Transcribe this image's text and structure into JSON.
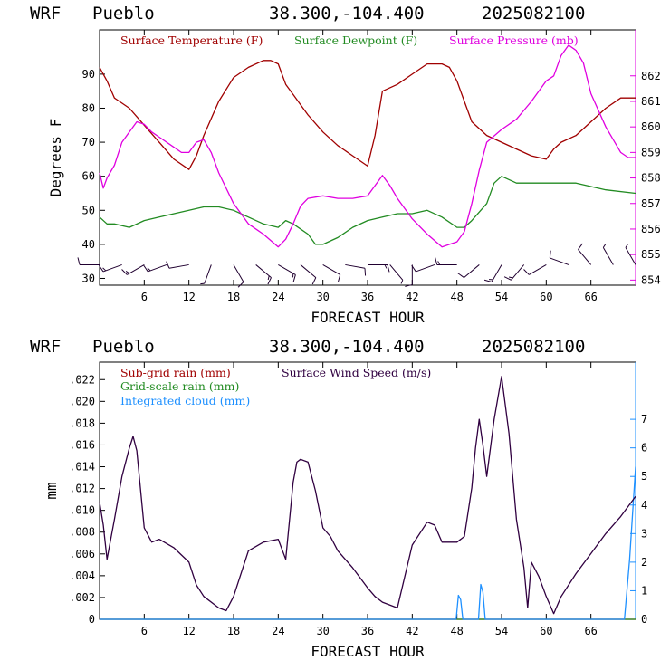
{
  "header": {
    "model": "WRF",
    "station": "Pueblo",
    "coords": "38.300,-104.400",
    "run": "2025082100"
  },
  "colors": {
    "temperature": "#a00000",
    "dewpoint": "#228b22",
    "pressure": "#e000e0",
    "subgrid_rain": "#a00000",
    "gridscale_rain": "#228b22",
    "cloud": "#1e90ff",
    "wind_speed": "#300040",
    "wind_barb": "#200030"
  },
  "chart_data": [
    {
      "type": "line",
      "title": "",
      "xlabel": "FORECAST HOUR",
      "ylabel": "Degrees F",
      "xlim": [
        0,
        72
      ],
      "ylim": [
        28,
        103
      ],
      "xticks": [
        6,
        12,
        18,
        24,
        30,
        36,
        42,
        48,
        54,
        60,
        66
      ],
      "yticks": [
        30,
        40,
        50,
        60,
        70,
        80,
        90
      ],
      "y2lim": [
        853.8,
        863.8
      ],
      "y2ticks": [
        854,
        855,
        856,
        857,
        858,
        859,
        860,
        861,
        862
      ],
      "grid": false,
      "legend": "top",
      "series": [
        {
          "name": "Surface Temperature (F)",
          "axis": "left",
          "x": [
            0,
            1,
            2,
            4,
            6,
            8,
            10,
            12,
            13,
            14,
            16,
            18,
            20,
            22,
            23,
            24,
            25,
            26,
            28,
            30,
            32,
            34,
            36,
            37,
            38,
            40,
            42,
            44,
            46,
            47,
            48,
            49,
            50,
            52,
            54,
            56,
            58,
            60,
            61,
            62,
            64,
            66,
            68,
            70,
            72
          ],
          "y": [
            92,
            88,
            83,
            80,
            75,
            70,
            65,
            62,
            66,
            72,
            82,
            89,
            92,
            94,
            94,
            93,
            87,
            84,
            78,
            73,
            69,
            66,
            63,
            72,
            85,
            87,
            90,
            93,
            93,
            92,
            88,
            82,
            76,
            72,
            70,
            68,
            66,
            65,
            68,
            70,
            72,
            76,
            80,
            83,
            83
          ]
        },
        {
          "name": "Surface Dewpoint (F)",
          "axis": "left",
          "x": [
            0,
            1,
            2,
            4,
            6,
            8,
            10,
            12,
            14,
            16,
            18,
            20,
            22,
            24,
            25,
            26,
            28,
            29,
            30,
            32,
            34,
            36,
            38,
            40,
            42,
            44,
            46,
            48,
            49,
            50,
            52,
            53,
            54,
            56,
            60,
            64,
            68,
            72
          ],
          "y": [
            48,
            46,
            46,
            45,
            47,
            48,
            49,
            50,
            51,
            51,
            50,
            48,
            46,
            45,
            47,
            46,
            43,
            40,
            40,
            42,
            45,
            47,
            48,
            49,
            49,
            50,
            48,
            45,
            45,
            47,
            52,
            58,
            60,
            58,
            58,
            58,
            56,
            55
          ]
        },
        {
          "name": "Surface Pressure (mb)",
          "axis": "right",
          "x": [
            0,
            0.5,
            1,
            2,
            3,
            4,
            5,
            6,
            7,
            8,
            10,
            11,
            12,
            13,
            14,
            15,
            16,
            18,
            20,
            22,
            24,
            25,
            26,
            27,
            28,
            30,
            32,
            34,
            36,
            37,
            38,
            39,
            40,
            42,
            44,
            46,
            47,
            48,
            49,
            50,
            51,
            52,
            54,
            56,
            58,
            60,
            61,
            62,
            63,
            64,
            65,
            66,
            68,
            70,
            71,
            72
          ],
          "y": [
            858.2,
            857.6,
            858.0,
            858.5,
            859.4,
            859.8,
            860.2,
            860.1,
            859.8,
            859.6,
            859.2,
            859.0,
            859.0,
            859.4,
            859.5,
            859.0,
            858.2,
            857.0,
            856.2,
            855.8,
            855.3,
            855.6,
            856.2,
            856.9,
            857.2,
            857.3,
            857.2,
            857.2,
            857.3,
            857.7,
            858.1,
            857.7,
            857.2,
            856.4,
            855.8,
            855.3,
            855.4,
            855.5,
            855.9,
            857.0,
            858.3,
            859.4,
            859.9,
            860.3,
            861.0,
            861.8,
            862.0,
            862.8,
            863.2,
            863.0,
            862.5,
            861.3,
            860.0,
            859.0,
            858.8,
            858.8
          ]
        }
      ],
      "wind_barbs": {
        "hours": [
          0,
          3,
          6,
          9,
          12,
          15,
          18,
          21,
          24,
          27,
          30,
          33,
          36,
          39,
          42,
          45,
          48,
          51,
          54,
          57,
          60,
          63,
          66,
          69,
          72
        ],
        "direction_deg": [
          270,
          250,
          240,
          250,
          260,
          200,
          150,
          130,
          120,
          130,
          120,
          100,
          90,
          140,
          180,
          250,
          270,
          230,
          210,
          220,
          240,
          290,
          320,
          330,
          330
        ],
        "speed_kt": [
          10,
          15,
          15,
          15,
          10,
          5,
          10,
          15,
          15,
          10,
          10,
          10,
          15,
          5,
          10,
          10,
          15,
          10,
          15,
          15,
          10,
          10,
          10,
          5,
          5
        ]
      }
    },
    {
      "type": "line",
      "title": "",
      "xlabel": "FORECAST HOUR",
      "ylabel": "mm",
      "xlim": [
        0,
        72
      ],
      "ylim": [
        0,
        0.0236
      ],
      "xticks": [
        6,
        12,
        18,
        24,
        30,
        36,
        42,
        48,
        54,
        60,
        66
      ],
      "yticks": [
        0,
        0.002,
        0.004,
        0.006,
        0.008,
        0.01,
        0.012,
        0.014,
        0.016,
        0.018,
        0.02,
        0.022
      ],
      "ytick_labels": [
        "0",
        ".002",
        ".004",
        ".006",
        ".008",
        ".010",
        ".012",
        ".014",
        ".016",
        ".018",
        ".020",
        ".022"
      ],
      "y2lim": [
        0,
        9.0
      ],
      "y2ticks": [
        0,
        1,
        2,
        3,
        4,
        5,
        6,
        7
      ],
      "grid": false,
      "legend": "top-left",
      "series": [
        {
          "name": "Sub-grid rain (mm)",
          "axis": "left",
          "x": [
            0,
            72
          ],
          "y": [
            0,
            0
          ]
        },
        {
          "name": "Grid-scale rain (mm)",
          "axis": "left",
          "x": [
            0,
            72
          ],
          "y": [
            0,
            0
          ]
        },
        {
          "name": "Integrated cloud (mm)",
          "axis": "left",
          "x": [
            0,
            47.9,
            48.2,
            48.5,
            48.8,
            50.9,
            51.2,
            51.5,
            51.8,
            70.5,
            71.2,
            72
          ],
          "y": [
            0,
            0,
            0.0022,
            0.0018,
            0,
            0,
            0.0032,
            0.0025,
            0,
            0,
            0.0055,
            0.014
          ]
        },
        {
          "name": "Surface Wind Speed (m/s)",
          "axis": "right",
          "x": [
            0,
            0.5,
            1,
            1.5,
            2,
            3,
            4,
            4.5,
            5,
            6,
            7,
            8,
            10,
            12,
            13,
            14,
            16,
            17,
            18,
            20,
            22,
            24,
            25,
            26,
            26.5,
            27,
            28,
            29,
            30,
            31,
            32,
            34,
            36,
            37,
            38,
            40,
            42,
            44,
            45,
            46,
            48,
            49,
            50,
            50.5,
            51,
            51.5,
            52,
            53,
            54,
            55,
            56,
            57,
            57.5,
            58,
            59,
            60,
            61,
            62,
            64,
            66,
            68,
            70,
            72
          ],
          "y": [
            4.1,
            3.3,
            2.1,
            2.8,
            3.5,
            5.0,
            6.0,
            6.4,
            5.9,
            3.2,
            2.7,
            2.8,
            2.5,
            2.0,
            1.2,
            0.8,
            0.4,
            0.3,
            0.8,
            2.4,
            2.7,
            2.8,
            2.1,
            4.8,
            5.5,
            5.6,
            5.5,
            4.5,
            3.2,
            2.9,
            2.4,
            1.8,
            1.1,
            0.8,
            0.6,
            0.4,
            2.6,
            3.4,
            3.3,
            2.7,
            2.7,
            2.9,
            4.6,
            6.0,
            7.0,
            6.1,
            5.0,
            7.0,
            8.5,
            6.5,
            3.5,
            1.8,
            0.4,
            2.0,
            1.5,
            0.8,
            0.2,
            0.8,
            1.6,
            2.3,
            3.0,
            3.6,
            4.3
          ]
        }
      ]
    }
  ]
}
